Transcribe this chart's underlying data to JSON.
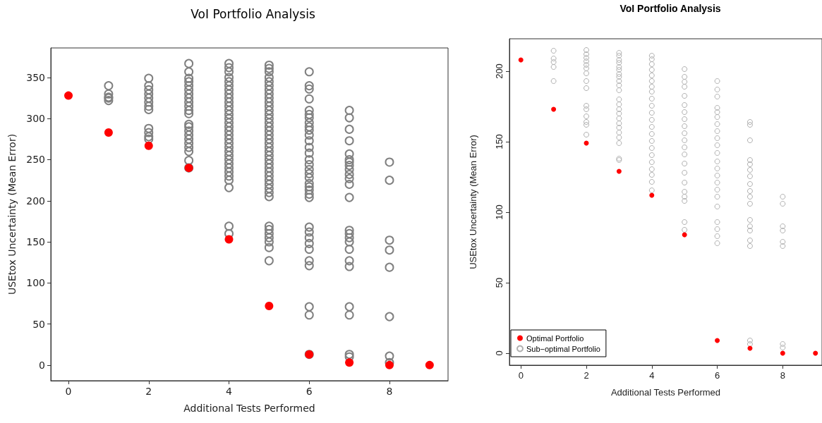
{
  "chart_data": [
    {
      "type": "scatter",
      "title": "VoI Portfolio Analysis",
      "xlabel": "Additional Tests Performed",
      "ylabel": "USEtox Uncertainty (Mean Error)",
      "xlim": [
        -0.44,
        9.46
      ],
      "ylim": [
        -19,
        386
      ],
      "xticks": [
        0,
        2,
        4,
        6,
        8
      ],
      "yticks": [
        0,
        50,
        100,
        150,
        200,
        250,
        300,
        350
      ],
      "grid": false,
      "legend": false,
      "marker": "circle",
      "series": [
        {
          "color": "#ff0000",
          "x": [
            0,
            1,
            2,
            3,
            4,
            5,
            6,
            7,
            8,
            9
          ],
          "values": [
            328,
            283,
            267,
            240,
            153,
            72,
            13,
            3,
            0,
            0
          ]
        },
        {
          "color": "#808080",
          "x": [
            1,
            1,
            1,
            1,
            1,
            2,
            2,
            2,
            2,
            2,
            2,
            2,
            2,
            2,
            2,
            2,
            2,
            3,
            3,
            3,
            3,
            3,
            3,
            3,
            3,
            3,
            3,
            3,
            3,
            3,
            3,
            3,
            3,
            3,
            3,
            3,
            3,
            3,
            3,
            4,
            4,
            4,
            4,
            4,
            4,
            4,
            4,
            4,
            4,
            4,
            4,
            4,
            4,
            4,
            4,
            4,
            4,
            4,
            4,
            4,
            4,
            4,
            4,
            4,
            4,
            4,
            4,
            4,
            4,
            4,
            4,
            5,
            5,
            5,
            5,
            5,
            5,
            5,
            5,
            5,
            5,
            5,
            5,
            5,
            5,
            5,
            5,
            5,
            5,
            5,
            5,
            5,
            5,
            5,
            5,
            5,
            5,
            5,
            5,
            5,
            5,
            5,
            5,
            5,
            5,
            5,
            5,
            5,
            5,
            5,
            5,
            6,
            6,
            6,
            6,
            6,
            6,
            6,
            6,
            6,
            6,
            6,
            6,
            6,
            6,
            6,
            6,
            6,
            6,
            6,
            6,
            6,
            6,
            6,
            6,
            6,
            6,
            6,
            6,
            6,
            6,
            6,
            6,
            6,
            6,
            7,
            7,
            7,
            7,
            7,
            7,
            7,
            7,
            7,
            7,
            7,
            7,
            7,
            7,
            7,
            7,
            7,
            7,
            7,
            7,
            7,
            7,
            7,
            7,
            8,
            8,
            8,
            8,
            8,
            8,
            8,
            8
          ],
          "values": [
            340,
            330,
            326,
            322,
            325,
            349,
            340,
            335,
            330,
            325,
            320,
            315,
            311,
            288,
            283,
            278,
            275,
            367,
            357,
            349,
            345,
            340,
            335,
            330,
            325,
            320,
            315,
            310,
            306,
            293,
            290,
            285,
            280,
            275,
            270,
            265,
            260,
            249,
            240,
            367,
            362,
            357,
            350,
            345,
            340,
            335,
            330,
            325,
            320,
            315,
            310,
            305,
            300,
            295,
            290,
            285,
            280,
            275,
            270,
            265,
            260,
            255,
            250,
            245,
            240,
            235,
            230,
            225,
            216,
            169,
            160,
            365,
            361,
            357,
            350,
            345,
            340,
            335,
            330,
            325,
            320,
            315,
            310,
            305,
            300,
            295,
            290,
            285,
            280,
            275,
            270,
            265,
            260,
            255,
            250,
            245,
            240,
            235,
            230,
            225,
            220,
            215,
            210,
            205,
            169,
            165,
            160,
            155,
            150,
            143,
            127,
            357,
            340,
            336,
            324,
            310,
            305,
            301,
            295,
            290,
            286,
            280,
            273,
            265,
            258,
            250,
            244,
            238,
            233,
            228,
            221,
            217,
            213,
            208,
            204,
            168,
            162,
            155,
            148,
            141,
            127,
            121,
            71,
            61,
            13,
            310,
            301,
            287,
            273,
            257,
            250,
            247,
            243,
            238,
            232,
            227,
            220,
            204,
            164,
            160,
            155,
            150,
            141,
            127,
            120,
            71,
            61,
            13,
            10,
            247,
            225,
            152,
            140,
            119,
            59,
            11,
            3
          ]
        }
      ]
    },
    {
      "type": "scatter",
      "title": "VoI Portfolio Analysis",
      "xlabel": "Additional Tests Performed",
      "ylabel": "USEtox Uncertainty (Mean Error)",
      "xlim": [
        -0.35,
        9.2
      ],
      "ylim": [
        -8.5,
        223
      ],
      "xticks": [
        0,
        2,
        4,
        6,
        8
      ],
      "yticks": [
        0,
        50,
        100,
        150,
        200
      ],
      "grid": false,
      "legend": "bottom left",
      "marker": "circle",
      "series": [
        {
          "name": "Optimal Portfolio",
          "color": "#ff0000",
          "x": [
            0,
            1,
            2,
            3,
            4,
            5,
            6,
            7,
            8,
            9
          ],
          "values": [
            208,
            173,
            149,
            129,
            112,
            84,
            9,
            3.5,
            0,
            0
          ]
        },
        {
          "name": "Sub−optimal Portfolio",
          "color": "#b0b0b0",
          "x": [
            1,
            1,
            1,
            1,
            1,
            2,
            2,
            2,
            2,
            2,
            2,
            2,
            2,
            2,
            2,
            2,
            2,
            2,
            2,
            2,
            3,
            3,
            3,
            3,
            3,
            3,
            3,
            3,
            3,
            3,
            3,
            3,
            3,
            3,
            3,
            3,
            3,
            3,
            3,
            3,
            3,
            3,
            3,
            4,
            4,
            4,
            4,
            4,
            4,
            4,
            4,
            4,
            4,
            4,
            4,
            4,
            4,
            4,
            4,
            4,
            4,
            4,
            4,
            4,
            4,
            5,
            5,
            5,
            5,
            5,
            5,
            5,
            5,
            5,
            5,
            5,
            5,
            5,
            5,
            5,
            5,
            5,
            5,
            5,
            5,
            5,
            6,
            6,
            6,
            6,
            6,
            6,
            6,
            6,
            6,
            6,
            6,
            6,
            6,
            6,
            6,
            6,
            6,
            6,
            6,
            6,
            6,
            6,
            7,
            7,
            7,
            7,
            7,
            7,
            7,
            7,
            7,
            7,
            7,
            7,
            7,
            7,
            7,
            7,
            7,
            7,
            8,
            8,
            8,
            8,
            8,
            8,
            8,
            8
          ],
          "values": [
            214.5,
            209,
            206.5,
            203,
            193,
            215,
            212,
            209.5,
            207,
            204.5,
            202,
            198.5,
            193,
            188,
            175.5,
            173,
            168,
            164,
            162,
            155,
            213,
            211,
            208,
            206,
            203,
            201,
            198,
            196,
            193,
            190,
            186.5,
            180,
            176.5,
            173,
            170,
            166.5,
            163,
            160,
            156.5,
            153,
            149,
            138,
            137,
            211,
            208.5,
            205,
            201,
            197,
            193,
            189,
            185.5,
            180.5,
            175.5,
            170.5,
            165.5,
            160.5,
            155.5,
            150.5,
            145.5,
            140.5,
            135.5,
            130.5,
            126.5,
            121.5,
            115.5,
            201.5,
            196,
            192.5,
            189,
            182.5,
            176,
            171,
            166,
            161,
            156,
            151,
            146,
            141,
            134.5,
            128,
            121,
            114.5,
            111,
            108,
            93,
            87.5,
            193,
            187,
            182,
            174,
            171,
            167.5,
            162.5,
            157.5,
            152.5,
            147.5,
            142,
            136,
            131,
            126,
            121,
            116,
            111,
            104,
            93,
            88,
            83,
            78,
            164,
            162,
            151,
            137,
            134,
            130,
            125.5,
            120,
            115,
            111,
            106,
            94.5,
            90,
            87,
            80,
            76,
            9,
            6.5,
            111,
            106,
            90,
            87,
            79,
            76,
            6.5,
            4
          ]
        }
      ]
    }
  ]
}
